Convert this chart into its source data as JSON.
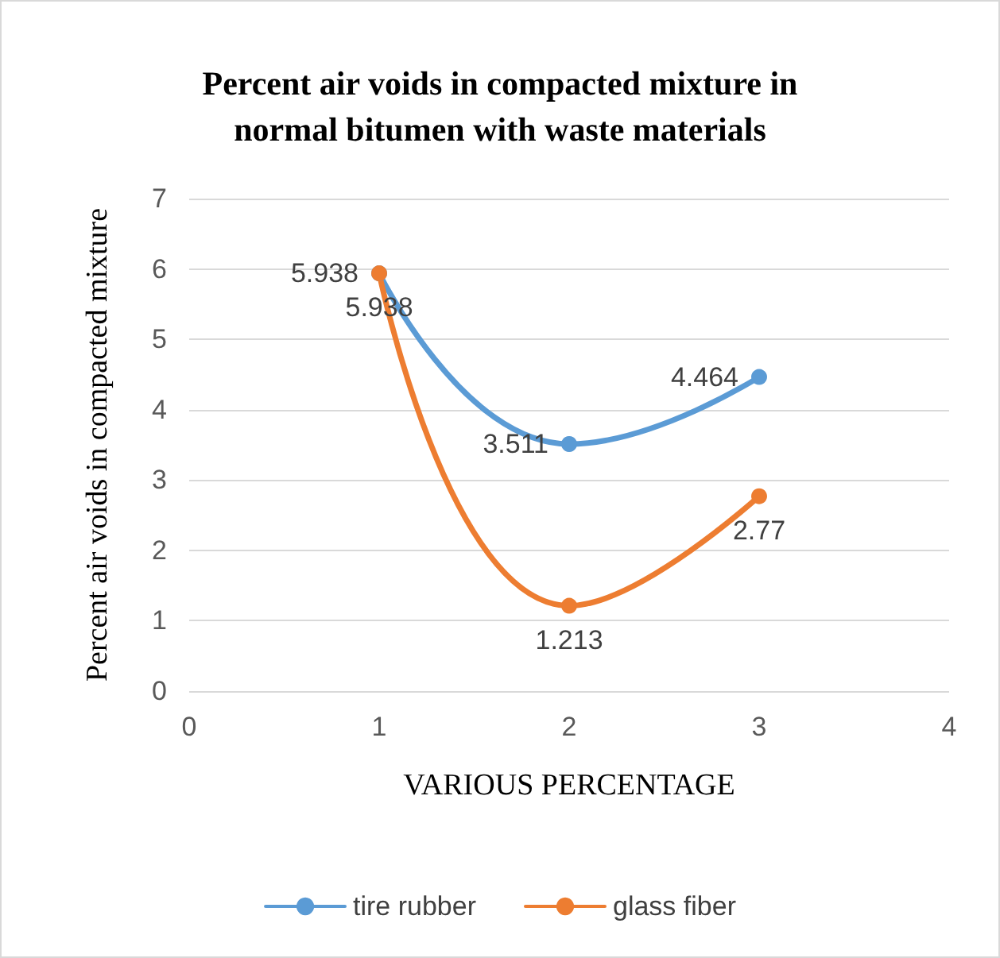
{
  "chart_data": {
    "type": "line",
    "title": "Percent air voids in compacted mixture in\nnormal bitumen with waste materials",
    "xlabel": "VARIOUS PERCENTAGE",
    "ylabel": "Percent air voids in compacted mixture",
    "x": [
      1,
      2,
      3
    ],
    "xlim": [
      0,
      4
    ],
    "xticks": [
      0,
      1,
      2,
      3,
      4
    ],
    "ylim": [
      0,
      7
    ],
    "yticks": [
      0,
      1,
      2,
      3,
      4,
      5,
      6,
      7
    ],
    "series": [
      {
        "name": "tire rubber",
        "color": "#5b9bd5",
        "values": [
          5.938,
          3.511,
          4.464
        ]
      },
      {
        "name": "glass fiber",
        "color": "#ed7d31",
        "values": [
          5.938,
          1.213,
          2.77
        ]
      }
    ],
    "data_labels": true,
    "grid": "y",
    "legend": "bottom",
    "marker": "circle"
  }
}
